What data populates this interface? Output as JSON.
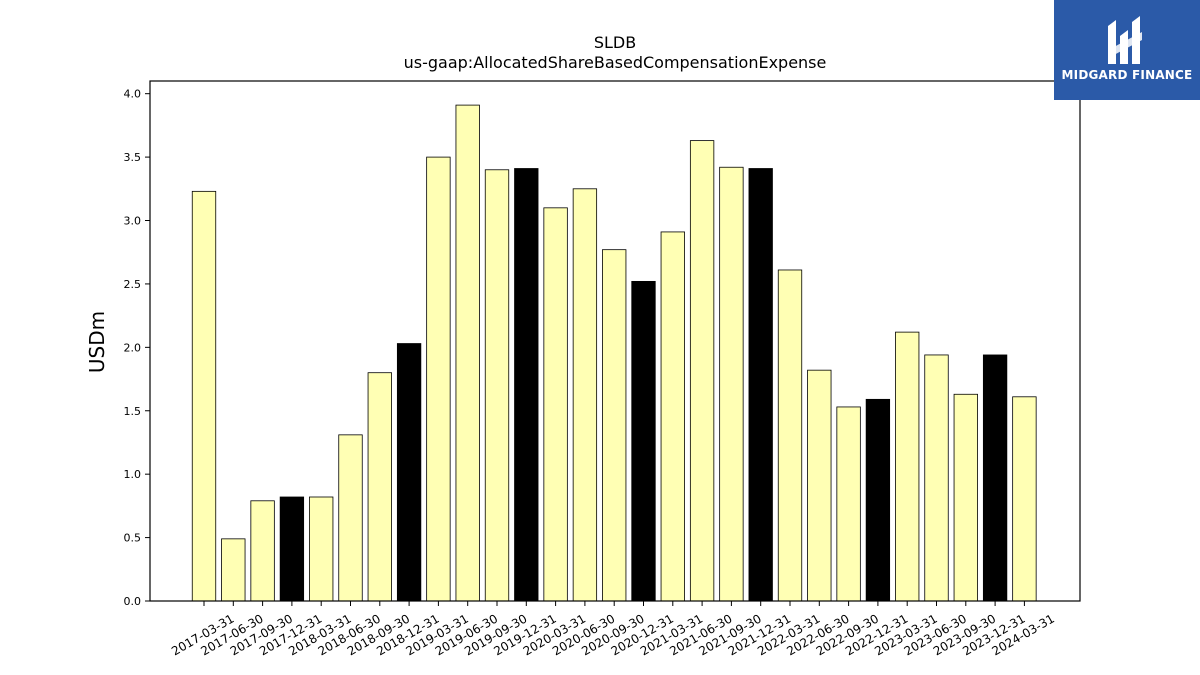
{
  "colors": {
    "bar_default": "#ffffb4",
    "bar_highlight": "#000000",
    "logo_bg": "#2b5aa8"
  },
  "logo": {
    "text": "MIDGARD FINANCE",
    "icon": "midgard-logo-icon"
  },
  "chart_data": {
    "type": "bar",
    "title": "SLDB",
    "subtitle": "us-gaap:AllocatedShareBasedCompensationExpense",
    "xlabel": "",
    "ylabel": "USDm",
    "ylim": [
      0,
      4.1
    ],
    "yticks": [
      "0.0",
      "0.5",
      "1.0",
      "1.5",
      "2.0",
      "2.5",
      "3.0",
      "3.5",
      "4.0"
    ],
    "grid": false,
    "categories": [
      "2017-03-31",
      "2017-06-30",
      "2017-09-30",
      "2017-12-31",
      "2018-03-31",
      "2018-06-30",
      "2018-09-30",
      "2018-12-31",
      "2019-03-31",
      "2019-06-30",
      "2019-09-30",
      "2019-12-31",
      "2020-03-31",
      "2020-06-30",
      "2020-09-30",
      "2020-12-31",
      "2021-03-31",
      "2021-06-30",
      "2021-09-30",
      "2021-12-31",
      "2022-03-31",
      "2022-06-30",
      "2022-09-30",
      "2022-12-31",
      "2023-03-31",
      "2023-06-30",
      "2023-09-30",
      "2023-12-31",
      "2024-03-31"
    ],
    "values": [
      3.23,
      0.49,
      0.79,
      0.82,
      0.82,
      1.31,
      1.8,
      2.03,
      3.5,
      3.91,
      3.4,
      3.41,
      3.1,
      3.25,
      2.77,
      2.52,
      2.91,
      3.63,
      3.42,
      3.41,
      2.61,
      1.82,
      1.53,
      1.59,
      2.12,
      1.94,
      1.63,
      1.94,
      1.61
    ],
    "highlight": [
      false,
      false,
      false,
      true,
      false,
      false,
      false,
      true,
      false,
      false,
      false,
      true,
      false,
      false,
      false,
      true,
      false,
      false,
      false,
      true,
      false,
      false,
      false,
      true,
      false,
      false,
      false,
      true,
      false
    ]
  }
}
